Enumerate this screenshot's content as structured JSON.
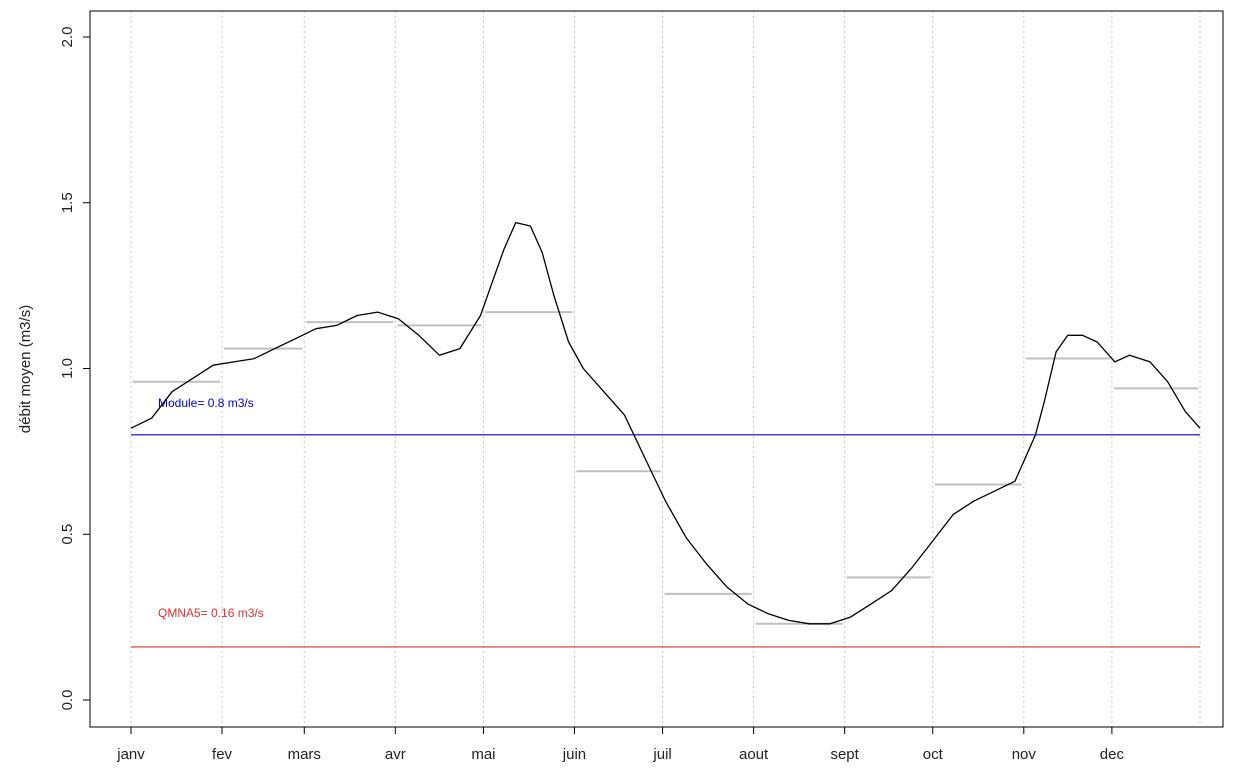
{
  "chart_data": {
    "type": "line",
    "xlabel": "",
    "ylabel": "débit moyen (m3/s)",
    "ylim": [
      0,
      2
    ],
    "yticks": [
      "0.0",
      "0.5",
      "1.0",
      "1.5",
      "2.0"
    ],
    "months": [
      "janv",
      "fev",
      "mars",
      "avr",
      "mai",
      "juin",
      "juil",
      "aout",
      "sept",
      "oct",
      "nov",
      "dec"
    ],
    "grid": "vertical dotted at month boundaries",
    "colors": {
      "daily": "#000000",
      "monthly": "#bfbfbf",
      "module": "#0000cc",
      "qmna5": "#e03030"
    },
    "daily_mean": {
      "x": [
        1,
        8,
        15,
        22,
        29,
        36,
        43,
        50,
        57,
        64,
        71,
        78,
        85,
        92,
        99,
        106,
        113,
        120,
        124,
        128,
        132,
        137,
        141,
        145,
        150,
        155,
        162,
        169,
        176,
        183,
        190,
        197,
        204,
        211,
        218,
        225,
        232,
        239,
        246,
        253,
        260,
        267,
        274,
        281,
        288,
        295,
        302,
        309,
        312,
        316,
        320,
        325,
        330,
        336,
        341,
        348,
        354,
        360,
        365
      ],
      "y": [
        0.82,
        0.85,
        0.93,
        0.97,
        1.01,
        1.02,
        1.03,
        1.06,
        1.09,
        1.12,
        1.13,
        1.16,
        1.17,
        1.15,
        1.1,
        1.04,
        1.06,
        1.16,
        1.26,
        1.36,
        1.44,
        1.43,
        1.35,
        1.22,
        1.08,
        1.0,
        0.93,
        0.86,
        0.73,
        0.6,
        0.49,
        0.41,
        0.34,
        0.29,
        0.26,
        0.24,
        0.23,
        0.23,
        0.25,
        0.29,
        0.33,
        0.4,
        0.48,
        0.56,
        0.6,
        0.63,
        0.66,
        0.8,
        0.9,
        1.05,
        1.1,
        1.1,
        1.08,
        1.02,
        1.04,
        1.02,
        0.96,
        0.87,
        0.82
      ]
    },
    "monthly_mean": {
      "values": [
        0.96,
        1.06,
        1.14,
        1.13,
        1.17,
        0.69,
        0.32,
        0.23,
        0.37,
        0.65,
        1.03,
        0.94
      ]
    },
    "reference_lines": [
      {
        "label": "Module= 0.8 m3/s",
        "value": 0.8,
        "color": "#0000cc"
      },
      {
        "label": "QMNA5= 0.16 m3/s",
        "value": 0.16,
        "color": "#e03030"
      }
    ]
  }
}
